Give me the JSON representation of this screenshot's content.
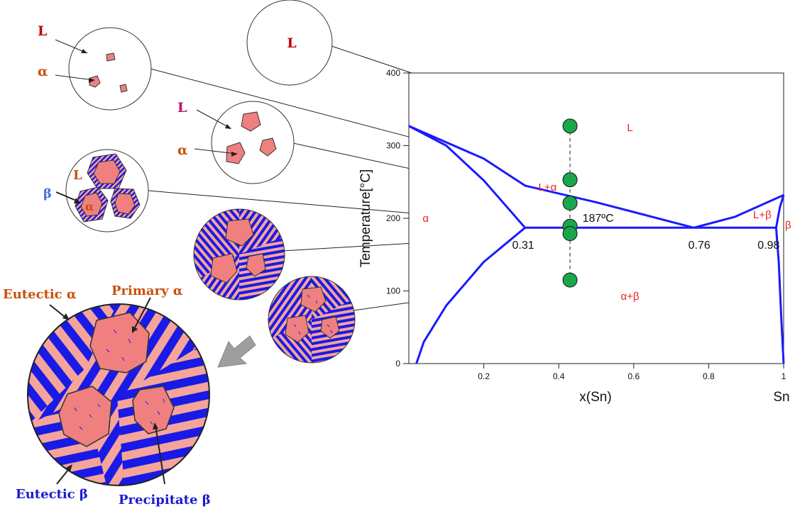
{
  "colors": {
    "phase_line": "#1a1aff",
    "point": "#1aa64b",
    "region_label": "#e8231e",
    "annot_red": "#c00000",
    "annot_orange": "#c8500a",
    "annot_pink": "#c01070",
    "annot_blue": "#4a6de6",
    "annot_navy": "#1a1ad0",
    "alpha_fill": "#f08080",
    "lamella_pink": "#f4a49a",
    "lamella_blue": "#1a1ae6",
    "arrow_gray": "#9e9e9e"
  },
  "chart_data": {
    "type": "phase-diagram",
    "title": "",
    "xlabel": "x(Sn)",
    "ylabel": "Temperature[°C]",
    "xlim": [
      0,
      1
    ],
    "ylim": [
      0,
      400
    ],
    "x_ticks": [
      "0.2",
      "0.4",
      "0.6",
      "0.8",
      "1"
    ],
    "y_ticks": [
      "0",
      "100",
      "200",
      "300",
      "400"
    ],
    "right_axis_label": "Sn",
    "region_labels": [
      {
        "text": "L",
        "x": 0.59,
        "y": 320
      },
      {
        "text": "L+α",
        "x": 0.37,
        "y": 238
      },
      {
        "text": "L+β",
        "x": 0.943,
        "y": 200
      },
      {
        "text": "α",
        "x": 0.045,
        "y": 195
      },
      {
        "text": "β",
        "x": 1.012,
        "y": 186
      },
      {
        "text": "α+β",
        "x": 0.59,
        "y": 88
      }
    ],
    "annotations": [
      {
        "text": "187ºC",
        "x": 0.505,
        "y": 195
      },
      {
        "text": "0.31",
        "x": 0.305,
        "y": 158
      },
      {
        "text": "0.76",
        "x": 0.775,
        "y": 158
      },
      {
        "text": "0.98",
        "x": 0.96,
        "y": 158
      }
    ],
    "eutectic_temperature": 187,
    "eutectic_composition": 0.76,
    "alpha_max_solubility": 0.31,
    "beta_max_solubility": 0.98,
    "series": [
      {
        "name": "liquidus-left",
        "points": [
          [
            0,
            327
          ],
          [
            0.2,
            282
          ],
          [
            0.31,
            245
          ],
          [
            0.5,
            222
          ],
          [
            0.76,
            187
          ]
        ]
      },
      {
        "name": "solidus-alpha",
        "points": [
          [
            0,
            327
          ],
          [
            0.1,
            300
          ],
          [
            0.2,
            252
          ],
          [
            0.31,
            187
          ]
        ]
      },
      {
        "name": "solvus-alpha",
        "points": [
          [
            0.31,
            187
          ],
          [
            0.2,
            140
          ],
          [
            0.1,
            80
          ],
          [
            0.04,
            30
          ],
          [
            0.02,
            0
          ]
        ]
      },
      {
        "name": "eutectic-isotherm",
        "points": [
          [
            0.31,
            187
          ],
          [
            0.98,
            187
          ]
        ]
      },
      {
        "name": "liquidus-right",
        "points": [
          [
            0.76,
            187
          ],
          [
            0.87,
            202
          ],
          [
            1,
            232
          ]
        ]
      },
      {
        "name": "solidus-beta",
        "points": [
          [
            0.98,
            187
          ],
          [
            0.99,
            215
          ],
          [
            1,
            232
          ]
        ]
      },
      {
        "name": "solvus-beta",
        "points": [
          [
            0.98,
            187
          ],
          [
            0.987,
            140
          ],
          [
            0.994,
            60
          ],
          [
            1,
            0
          ]
        ]
      }
    ],
    "composition_line": {
      "x": 0.43,
      "y_from": 115,
      "y_to": 328
    },
    "state_points": [
      {
        "name": "point-liquid",
        "x": 0.43,
        "y": 327
      },
      {
        "name": "point-liquidus",
        "x": 0.43,
        "y": 253
      },
      {
        "name": "point-two-phase",
        "x": 0.43,
        "y": 221
      },
      {
        "name": "point-eutectic-above",
        "x": 0.43,
        "y": 189
      },
      {
        "name": "point-eutectic-below",
        "x": 0.43,
        "y": 179
      },
      {
        "name": "point-room",
        "x": 0.43,
        "y": 115
      }
    ]
  },
  "microstructures": {
    "circle1": {
      "liquid_label": "L",
      "alpha_label": "α"
    },
    "circle2": {
      "liquid_label": "L"
    },
    "circle3": {
      "liquid_label": "L",
      "alpha_label": "α"
    },
    "circle4": {
      "liquid_label": "L",
      "beta_label": "β",
      "alpha_label": "α"
    }
  },
  "large_view": {
    "eutectic_alpha": "Eutectic α",
    "primary_alpha": "Primary α",
    "eutectic_beta": "Eutectic β",
    "precipitate_beta": "Precipitate β"
  }
}
